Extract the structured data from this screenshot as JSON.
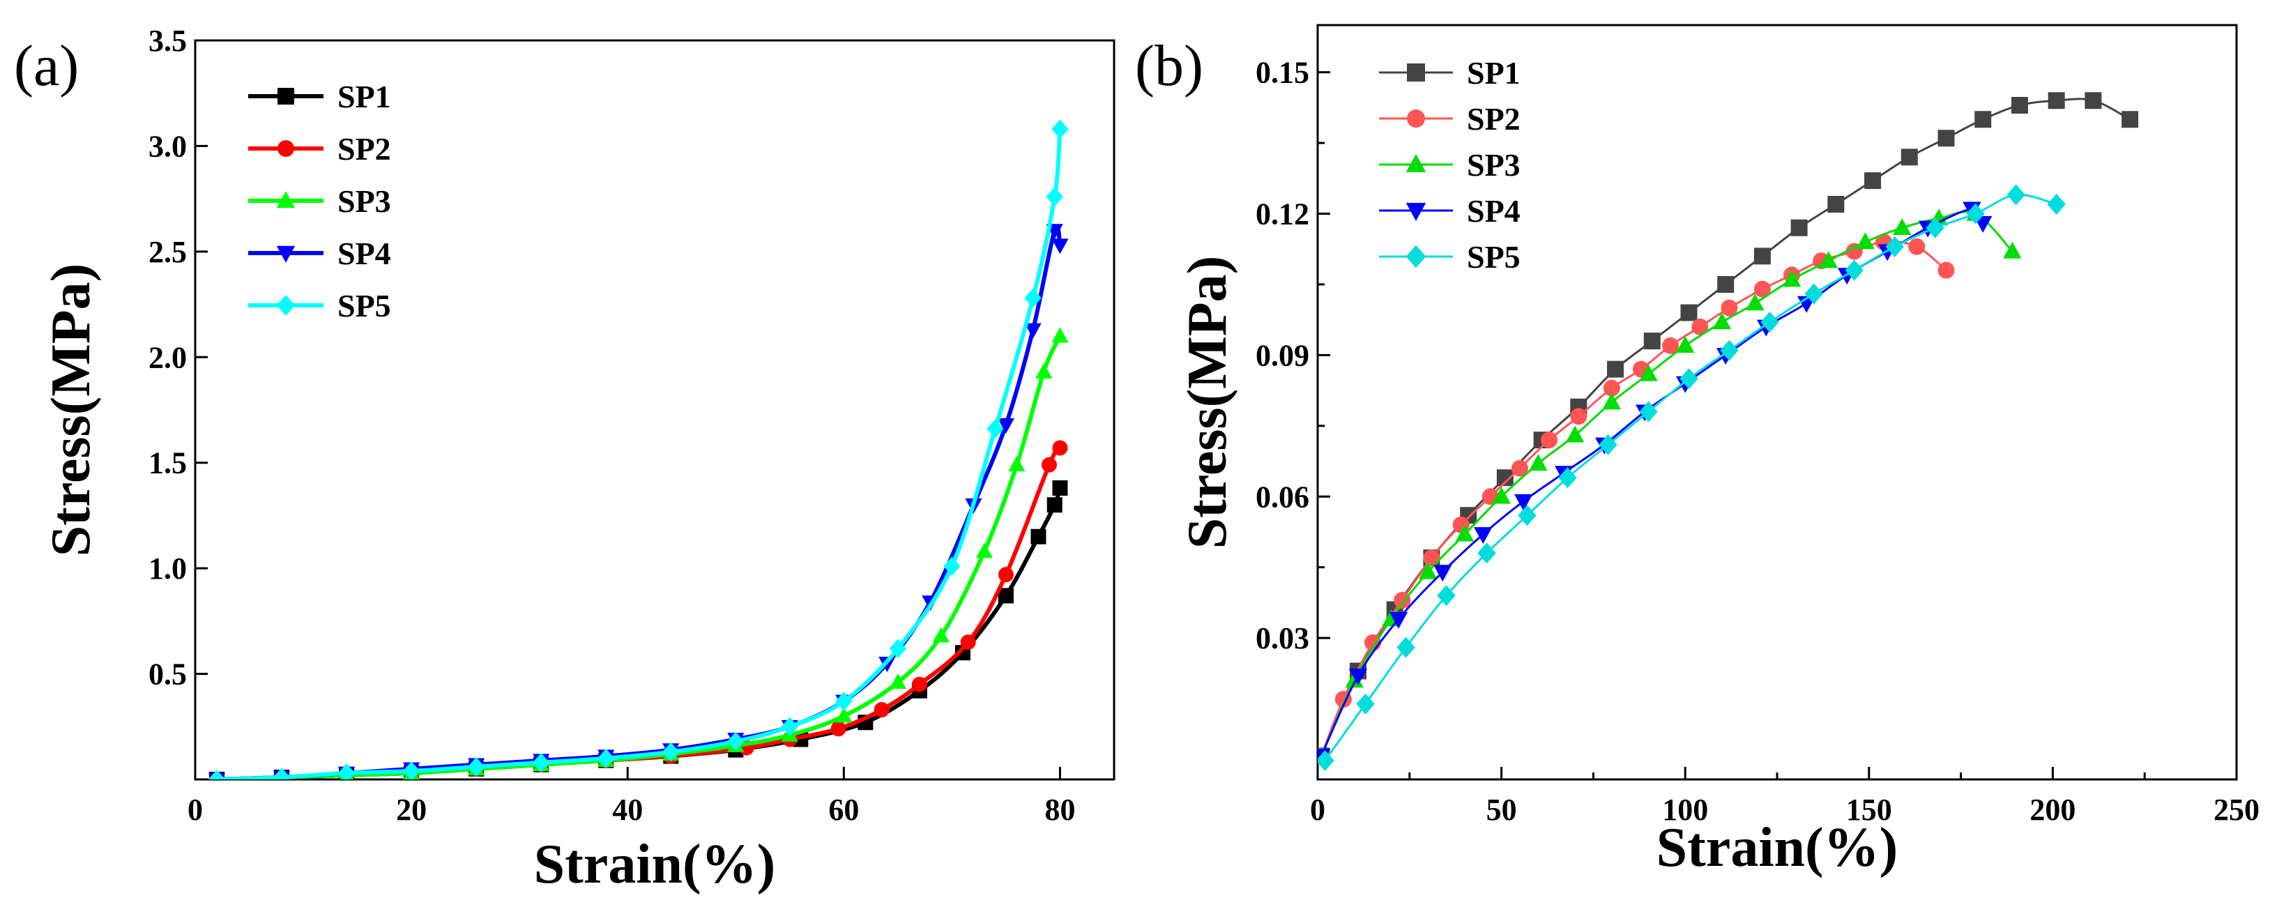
{
  "chart_data": [
    {
      "type": "line",
      "panel_label": "(a)",
      "xlabel": "Strain(%)",
      "ylabel": "Stress(MPa)",
      "xlim": [
        0,
        85
      ],
      "ylim": [
        0,
        3.5
      ],
      "xticks": [
        {
          "value": 0,
          "label": "0"
        },
        {
          "value": 20,
          "label": "20"
        },
        {
          "value": 40,
          "label": "40"
        },
        {
          "value": 60,
          "label": "60"
        },
        {
          "value": 80,
          "label": "80"
        }
      ],
      "yticks": [
        {
          "value": 0.5,
          "label": "0.5"
        },
        {
          "value": 1.0,
          "label": "1.0"
        },
        {
          "value": 1.5,
          "label": "1.5"
        },
        {
          "value": 2.0,
          "label": "2.0"
        },
        {
          "value": 2.5,
          "label": "2.5"
        },
        {
          "value": 3.0,
          "label": "3.0"
        },
        {
          "value": 3.5,
          "label": "3.5"
        }
      ],
      "grid": false,
      "legend_position": "top-left",
      "series": [
        {
          "name": "SP1",
          "color": "#000000",
          "marker": "square",
          "x": [
            2,
            8,
            14,
            20,
            26,
            32,
            38,
            44,
            50,
            56,
            62,
            67,
            71,
            75,
            78,
            79.5,
            80
          ],
          "y": [
            0.0,
            0.01,
            0.02,
            0.03,
            0.05,
            0.07,
            0.09,
            0.11,
            0.14,
            0.19,
            0.27,
            0.42,
            0.6,
            0.87,
            1.15,
            1.3,
            1.38
          ]
        },
        {
          "name": "SP2",
          "color": "#ff0000",
          "marker": "circle",
          "x": [
            2,
            8,
            14,
            20,
            26,
            32,
            38,
            44,
            51,
            55,
            59.5,
            63.5,
            67,
            71.5,
            75,
            79,
            80
          ],
          "y": [
            0.0,
            0.01,
            0.02,
            0.03,
            0.05,
            0.07,
            0.09,
            0.11,
            0.15,
            0.19,
            0.24,
            0.33,
            0.45,
            0.65,
            0.97,
            1.49,
            1.57
          ]
        },
        {
          "name": "SP3",
          "color": "#00ff00",
          "marker": "triangle-up",
          "x": [
            2,
            8,
            14,
            20,
            26,
            32,
            38,
            44,
            50,
            55,
            60,
            65,
            69,
            73,
            76,
            78.5,
            80
          ],
          "y": [
            0.0,
            0.01,
            0.02,
            0.03,
            0.05,
            0.07,
            0.09,
            0.12,
            0.16,
            0.21,
            0.3,
            0.46,
            0.68,
            1.08,
            1.49,
            1.93,
            2.1
          ]
        },
        {
          "name": "SP4",
          "color": "#0000ff",
          "marker": "triangle-down",
          "x": [
            2,
            8,
            14,
            20,
            26,
            32,
            38,
            44,
            50,
            55,
            60,
            64,
            68,
            72,
            75,
            77.5,
            79.5,
            80
          ],
          "y": [
            0.0,
            0.01,
            0.03,
            0.05,
            0.07,
            0.09,
            0.11,
            0.14,
            0.19,
            0.25,
            0.37,
            0.55,
            0.84,
            1.3,
            1.68,
            2.13,
            2.6,
            2.53
          ]
        },
        {
          "name": "SP5",
          "color": "#00ffff",
          "marker": "diamond",
          "x": [
            2,
            8,
            14,
            20,
            26,
            32,
            38,
            44,
            50,
            55,
            60,
            65,
            70,
            74,
            77.5,
            79.5,
            80
          ],
          "y": [
            0.0,
            0.01,
            0.03,
            0.04,
            0.06,
            0.08,
            0.1,
            0.13,
            0.18,
            0.25,
            0.37,
            0.62,
            1.01,
            1.66,
            2.28,
            2.76,
            3.08
          ]
        }
      ]
    },
    {
      "type": "line",
      "panel_label": "(b)",
      "xlabel": "Strain(%)",
      "ylabel": "Stress(MPa)",
      "xlim": [
        0,
        250
      ],
      "ylim": [
        0,
        0.16
      ],
      "xticks": [
        {
          "value": 0,
          "label": "0"
        },
        {
          "value": 50,
          "label": "50"
        },
        {
          "value": 100,
          "label": "100"
        },
        {
          "value": 150,
          "label": "150"
        },
        {
          "value": 200,
          "label": "200"
        },
        {
          "value": 250,
          "label": "250"
        }
      ],
      "yticks": [
        {
          "value": 0.03,
          "label": "0.03"
        },
        {
          "value": 0.06,
          "label": "0.06"
        },
        {
          "value": 0.09,
          "label": "0.09"
        },
        {
          "value": 0.12,
          "label": "0.12"
        },
        {
          "value": 0.15,
          "label": "0.15"
        }
      ],
      "grid": false,
      "legend_position": "top-left",
      "series": [
        {
          "name": "SP1",
          "color": "#444444",
          "marker": "square",
          "x": [
            1,
            11,
            21,
            31,
            41,
            51,
            61,
            71,
            81,
            91,
            101,
            111,
            121,
            131,
            141,
            151,
            161,
            171,
            181,
            191,
            201,
            211,
            221
          ],
          "y": [
            0.005,
            0.023,
            0.036,
            0.047,
            0.056,
            0.064,
            0.072,
            0.079,
            0.087,
            0.093,
            0.099,
            0.105,
            0.111,
            0.117,
            0.122,
            0.127,
            0.132,
            0.136,
            0.14,
            0.143,
            0.144,
            0.144,
            0.14
          ]
        },
        {
          "name": "SP2",
          "color": "#ff5555",
          "marker": "circle",
          "x": [
            1,
            7,
            15,
            23,
            31,
            39,
            47,
            55,
            63,
            71,
            80,
            88,
            96,
            104,
            112,
            121,
            129,
            137,
            146,
            154,
            163,
            171
          ],
          "y": [
            0.005,
            0.017,
            0.029,
            0.038,
            0.047,
            0.054,
            0.06,
            0.066,
            0.072,
            0.077,
            0.083,
            0.087,
            0.092,
            0.096,
            0.1,
            0.104,
            0.107,
            0.11,
            0.112,
            0.114,
            0.113,
            0.108
          ]
        },
        {
          "name": "SP3",
          "color": "#00dd00",
          "marker": "triangle-up",
          "x": [
            1,
            10,
            20,
            30,
            40,
            50,
            60,
            70,
            80,
            90,
            100,
            110,
            119,
            129,
            139,
            149,
            159,
            169,
            179,
            189
          ],
          "y": [
            0.005,
            0.021,
            0.034,
            0.044,
            0.052,
            0.06,
            0.067,
            0.073,
            0.08,
            0.086,
            0.092,
            0.097,
            0.101,
            0.106,
            0.11,
            0.114,
            0.117,
            0.119,
            0.12,
            0.112
          ]
        },
        {
          "name": "SP4",
          "color": "#0000ff",
          "marker": "triangle-down",
          "x": [
            1,
            11,
            22,
            34,
            45,
            56,
            67,
            78,
            89,
            100,
            111,
            122,
            133,
            144,
            155,
            166,
            178,
            181
          ],
          "y": [
            0.005,
            0.022,
            0.034,
            0.044,
            0.052,
            0.059,
            0.065,
            0.071,
            0.078,
            0.084,
            0.09,
            0.096,
            0.101,
            0.107,
            0.112,
            0.117,
            0.121,
            0.118
          ]
        },
        {
          "name": "SP5",
          "color": "#00dddd",
          "marker": "diamond",
          "x": [
            2,
            13,
            24,
            35,
            46,
            57,
            68,
            79,
            90,
            101,
            112,
            123,
            135,
            146,
            157,
            168,
            179,
            190,
            201
          ],
          "y": [
            0.004,
            0.016,
            0.028,
            0.039,
            0.048,
            0.056,
            0.064,
            0.071,
            0.078,
            0.085,
            0.091,
            0.097,
            0.103,
            0.108,
            0.113,
            0.117,
            0.12,
            0.124,
            0.122
          ]
        }
      ]
    }
  ]
}
